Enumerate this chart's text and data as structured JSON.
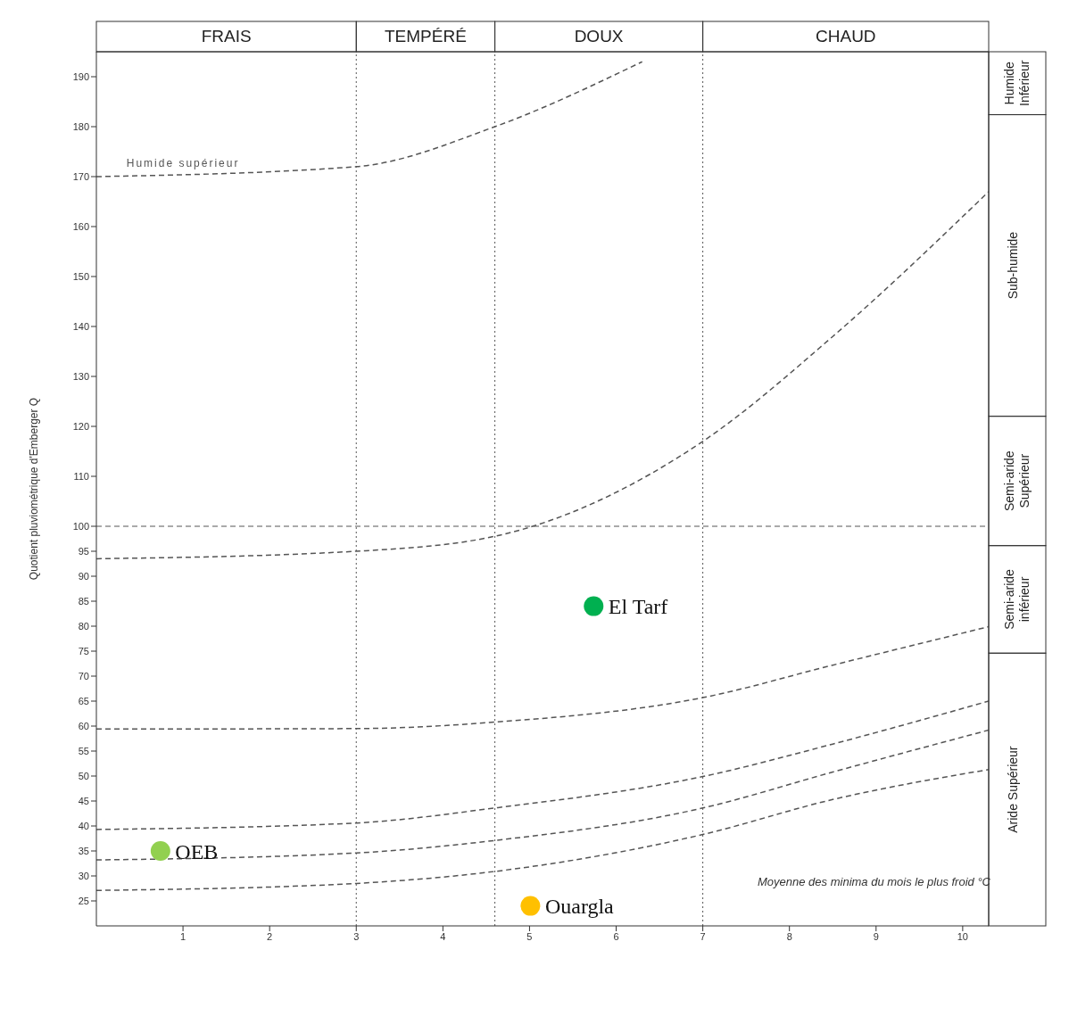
{
  "chart_data": {
    "type": "scatter",
    "xlabel": "Moyenne des minima du mois le plus froid °C",
    "ylabel": "Quotient pluviométrique d'Emberger Q",
    "xlim": [
      0,
      10.3
    ],
    "xticks": [
      1,
      2,
      3,
      4,
      5,
      6,
      7,
      8,
      9,
      10
    ],
    "ylim": [
      20,
      195
    ],
    "yticks": [
      25,
      30,
      35,
      40,
      45,
      50,
      55,
      60,
      65,
      70,
      75,
      80,
      85,
      90,
      95,
      100,
      110,
      120,
      130,
      140,
      150,
      160,
      170,
      180,
      190
    ],
    "grid": false,
    "legend": false,
    "marker": "circle",
    "series": [
      {
        "type": "line",
        "color": "#555555",
        "line_style": "dashed",
        "marker": "none",
        "x": [
          0,
          3,
          4.6,
          6.3
        ],
        "values": [
          170,
          172,
          180,
          193
        ]
      },
      {
        "type": "line",
        "color": "#555555",
        "line_style": "dashed",
        "marker": "none",
        "x": [
          0,
          3,
          4.6,
          7,
          8.5,
          10.3
        ],
        "values": [
          93.5,
          95,
          98,
          117,
          138,
          167
        ]
      },
      {
        "type": "line",
        "color": "#555555",
        "line_style": "dashed",
        "marker": "none",
        "x": [
          0,
          3,
          4.6,
          7,
          8.5,
          10.3
        ],
        "values": [
          59.4,
          59.5,
          60.8,
          65.7,
          72.2,
          79.9
        ]
      },
      {
        "type": "line",
        "color": "#555555",
        "line_style": "dashed",
        "marker": "none",
        "x": [
          0,
          3,
          4.6,
          7,
          8.5,
          10.3
        ],
        "values": [
          39.3,
          40.6,
          43.6,
          49.9,
          56.4,
          65
        ]
      },
      {
        "type": "line",
        "color": "#555555",
        "line_style": "dashed",
        "marker": "none",
        "x": [
          0,
          3,
          4.6,
          7,
          8.5,
          10.3
        ],
        "values": [
          33.2,
          34.6,
          37.1,
          43.6,
          50.8,
          59.2
        ]
      },
      {
        "type": "line",
        "color": "#555555",
        "line_style": "dashed",
        "marker": "none",
        "x": [
          0,
          3,
          4.6,
          7,
          8.5,
          10.3
        ],
        "values": [
          27.1,
          28.5,
          30.9,
          38.3,
          45.3,
          51.3
        ]
      },
      {
        "name": "El Tarf",
        "color": "#00b050",
        "x": [
          5.74
        ],
        "values": [
          84
        ]
      },
      {
        "name": "OEB",
        "color": "#92d050",
        "x": [
          0.74
        ],
        "values": [
          35
        ]
      },
      {
        "name": "Ouargla",
        "color": "#ffc000",
        "x": [
          5.01
        ],
        "values": [
          24
        ]
      }
    ],
    "ref_lines": [
      {
        "axis": "x",
        "value": 3,
        "color": "#555555",
        "line_style": "dotted"
      },
      {
        "axis": "x",
        "value": 4.6,
        "color": "#555555",
        "line_style": "dotted"
      },
      {
        "axis": "x",
        "value": 7,
        "color": "#555555",
        "line_style": "dotted"
      },
      {
        "axis": "y",
        "value": 100,
        "color": "#555555",
        "line_style": "dashed"
      }
    ],
    "annotations": [
      {
        "text": "Humide supérieur",
        "x": 1,
        "y": 171
      },
      "FRAIS",
      "TEMPÉRÉ",
      "DOUX",
      "CHAUD",
      "Humide Inférieur",
      "Sub-humide",
      "Semi-aride Supérieur",
      "Semi-aride inférieur",
      "Aride Supérieur"
    ]
  }
}
